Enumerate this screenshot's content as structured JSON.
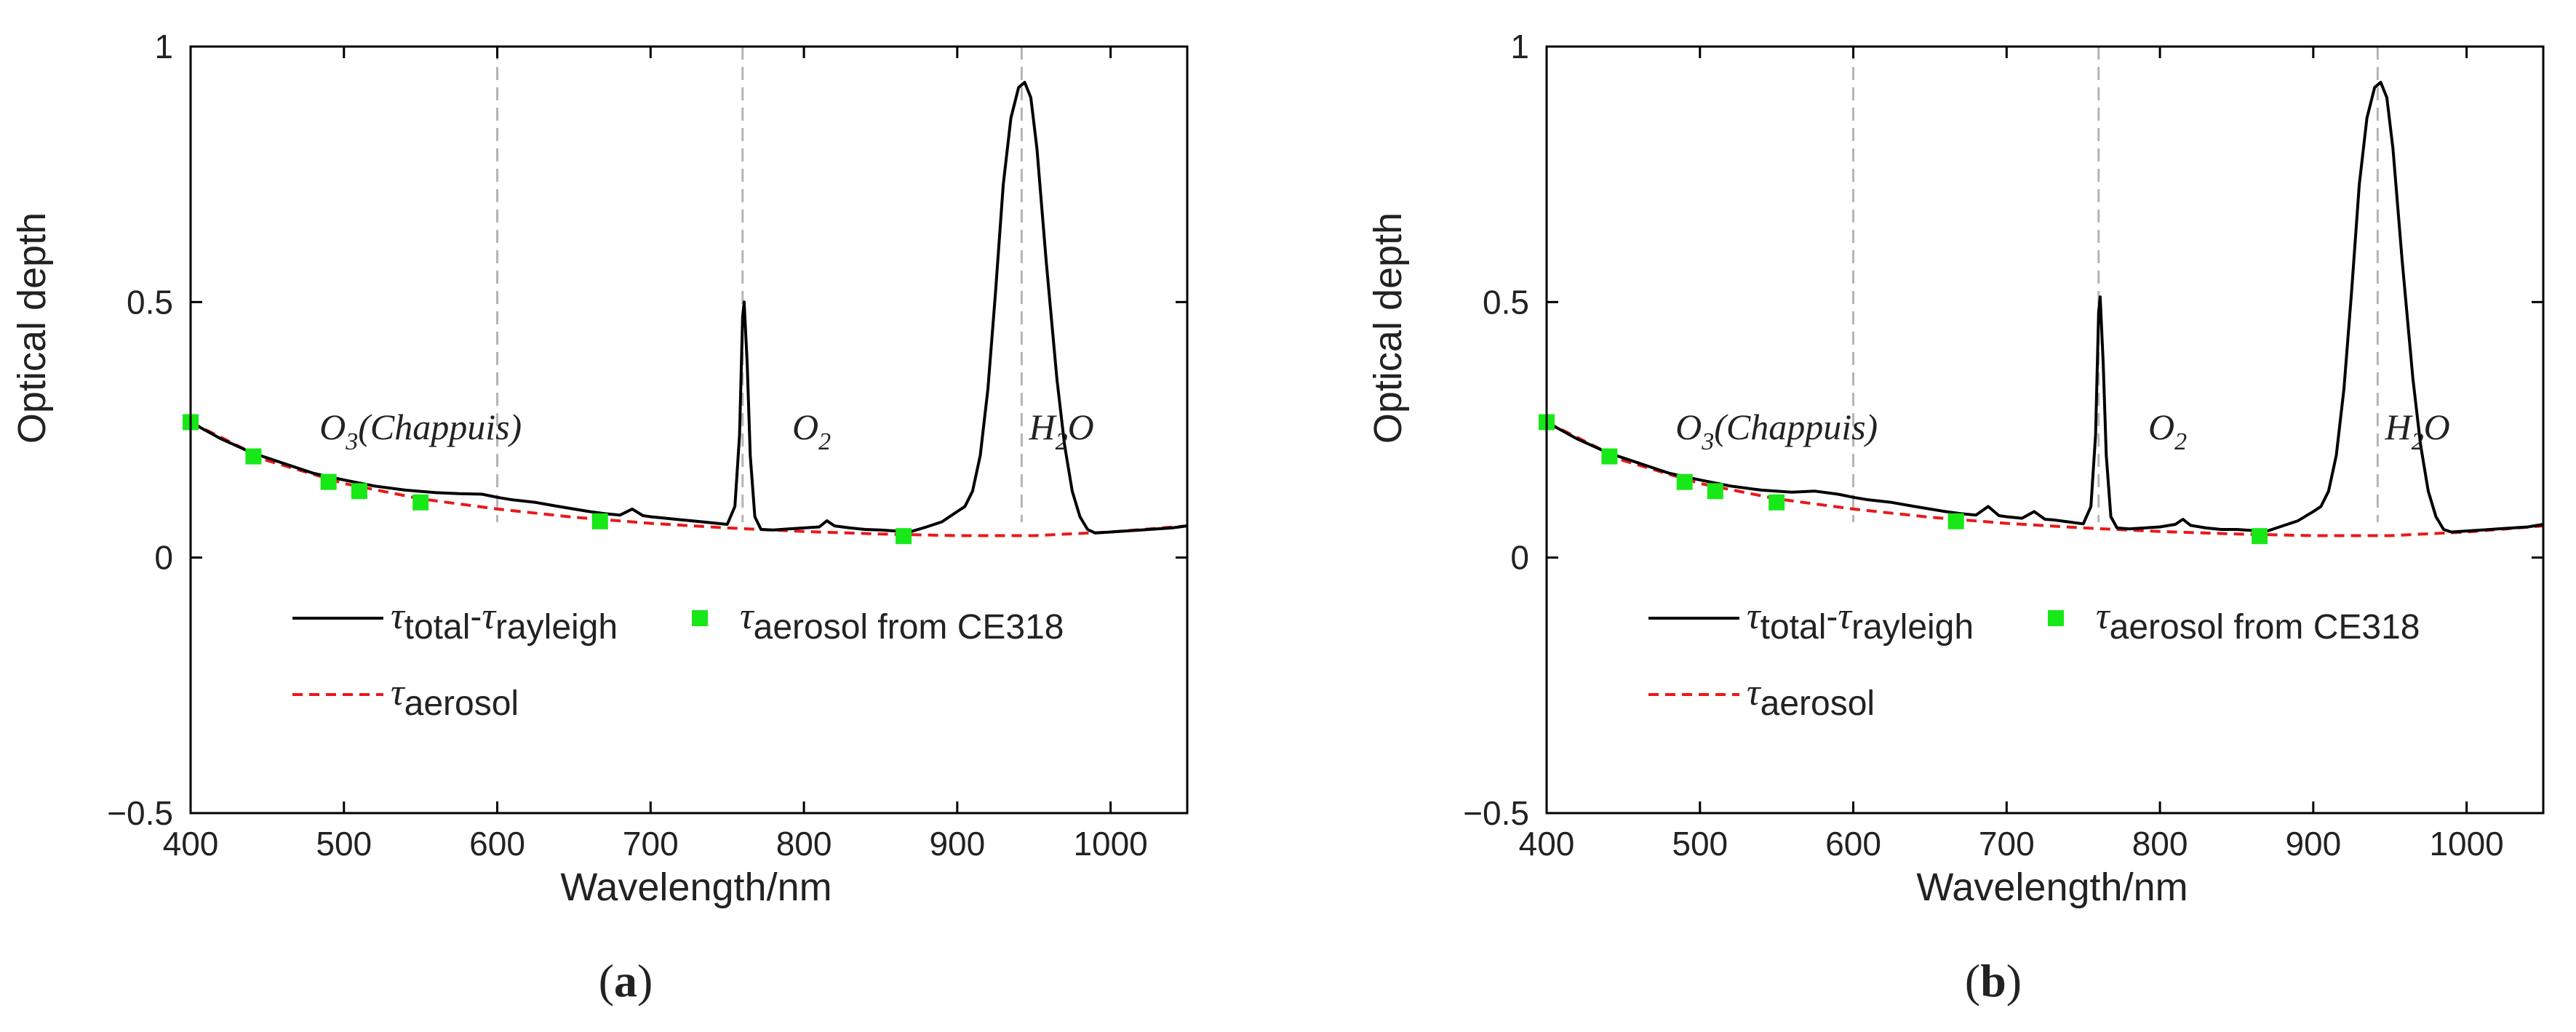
{
  "colors": {
    "total_line": "#000000",
    "aerosol_line": "#e8191b",
    "ce318_marker": "#18e818",
    "band_marker": "#b4b4b4"
  },
  "chart_data": [
    {
      "type": "line",
      "panel_label": "(a)",
      "xlabel": "Wavelength/nm",
      "ylabel": "Optical depth",
      "xlim": [
        400,
        1050
      ],
      "ylim": [
        -0.5,
        1
      ],
      "xticks": [
        400,
        500,
        600,
        700,
        800,
        900,
        1000
      ],
      "xtick_labels": [
        "400",
        "500",
        "600",
        "700",
        "800",
        "900",
        "1000"
      ],
      "yticks": [
        -0.5,
        0,
        0.5,
        1
      ],
      "ytick_labels": [
        "−0.5",
        "0",
        "0.5",
        "1"
      ],
      "grid": false,
      "legend_position": "lower-left",
      "band_markers": [
        600,
        760,
        942
      ],
      "annotations": [
        {
          "main": "O",
          "sub": "3",
          "rest": "(Chappuis)",
          "x": 550,
          "y": 0.26
        },
        {
          "main": "O",
          "sub": "2",
          "rest": "",
          "x": 805,
          "y": 0.26
        },
        {
          "main": "H",
          "sub": "2",
          "rest": "O",
          "x": 968,
          "y": 0.26
        }
      ],
      "legend": {
        "total": {
          "main": "τ",
          "sub1": "total",
          "dash": "-",
          "main2": "τ",
          "sub2": "rayleigh"
        },
        "aerosol": {
          "main": "τ",
          "sub": "aerosol"
        },
        "ce318": {
          "main": "τ",
          "sub": "aerosol from CE318"
        }
      },
      "series": [
        {
          "name": "τtotal-τrayleigh",
          "style": "solid",
          "x": [
            400,
            420,
            440,
            460,
            480,
            500,
            520,
            540,
            560,
            575,
            590,
            600,
            610,
            625,
            640,
            650,
            660,
            670,
            680,
            688,
            695,
            700,
            710,
            720,
            730,
            740,
            750,
            755,
            758,
            760,
            761,
            763,
            765,
            768,
            772,
            780,
            790,
            800,
            810,
            815,
            820,
            830,
            840,
            850,
            860,
            870,
            880,
            890,
            900,
            905,
            910,
            915,
            920,
            925,
            930,
            935,
            940,
            944,
            948,
            952,
            958,
            965,
            970,
            975,
            980,
            985,
            990,
            1000,
            1010,
            1020,
            1030,
            1040,
            1050
          ],
          "y": [
            0.265,
            0.232,
            0.205,
            0.185,
            0.165,
            0.152,
            0.14,
            0.132,
            0.127,
            0.125,
            0.124,
            0.118,
            0.113,
            0.108,
            0.1,
            0.095,
            0.09,
            0.086,
            0.083,
            0.095,
            0.082,
            0.08,
            0.077,
            0.074,
            0.071,
            0.068,
            0.065,
            0.1,
            0.24,
            0.47,
            0.5,
            0.38,
            0.2,
            0.08,
            0.055,
            0.054,
            0.056,
            0.058,
            0.06,
            0.072,
            0.062,
            0.058,
            0.055,
            0.054,
            0.052,
            0.051,
            0.06,
            0.07,
            0.09,
            0.1,
            0.13,
            0.2,
            0.33,
            0.52,
            0.73,
            0.86,
            0.92,
            0.93,
            0.9,
            0.8,
            0.58,
            0.35,
            0.22,
            0.13,
            0.08,
            0.055,
            0.048,
            0.05,
            0.052,
            0.054,
            0.056,
            0.058,
            0.062
          ]
        },
        {
          "name": "τaerosol",
          "style": "dashed",
          "x": [
            400,
            450,
            500,
            550,
            600,
            650,
            700,
            750,
            800,
            850,
            900,
            950,
            1000,
            1050
          ],
          "y": [
            0.265,
            0.19,
            0.145,
            0.115,
            0.095,
            0.079,
            0.067,
            0.058,
            0.051,
            0.046,
            0.043,
            0.043,
            0.05,
            0.062
          ]
        },
        {
          "name": "τaerosol from CE318",
          "style": "markers",
          "x": [
            400,
            441,
            490,
            510,
            550,
            667,
            865
          ],
          "y": [
            0.265,
            0.198,
            0.148,
            0.13,
            0.108,
            0.071,
            0.042
          ]
        }
      ]
    },
    {
      "type": "line",
      "panel_label": "(b)",
      "xlabel": "Wavelength/nm",
      "ylabel": "Optical depth",
      "xlim": [
        400,
        1050
      ],
      "ylim": [
        -0.5,
        1
      ],
      "xticks": [
        400,
        500,
        600,
        700,
        800,
        900,
        1000
      ],
      "xtick_labels": [
        "400",
        "500",
        "600",
        "700",
        "800",
        "900",
        "1000"
      ],
      "yticks": [
        -0.5,
        0,
        0.5,
        1
      ],
      "ytick_labels": [
        "−0.5",
        "0",
        "0.5",
        "1"
      ],
      "grid": false,
      "legend_position": "lower-left",
      "band_markers": [
        600,
        760,
        942
      ],
      "annotations": [
        {
          "main": "O",
          "sub": "3",
          "rest": "(Chappuis)",
          "x": 550,
          "y": 0.26
        },
        {
          "main": "O",
          "sub": "2",
          "rest": "",
          "x": 805,
          "y": 0.26
        },
        {
          "main": "H",
          "sub": "2",
          "rest": "O",
          "x": 968,
          "y": 0.26
        }
      ],
      "legend": {
        "total": {
          "main": "τ",
          "sub1": "total",
          "dash": "-",
          "main2": "τ",
          "sub2": "rayleigh"
        },
        "aerosol": {
          "main": "τ",
          "sub": "aerosol"
        },
        "ce318": {
          "main": "τ",
          "sub": "aerosol from CE318"
        }
      },
      "series": [
        {
          "name": "τtotal-τrayleigh",
          "style": "solid",
          "x": [
            400,
            420,
            440,
            460,
            480,
            500,
            520,
            540,
            560,
            575,
            590,
            600,
            610,
            625,
            640,
            650,
            660,
            670,
            680,
            688,
            695,
            700,
            710,
            718,
            725,
            730,
            740,
            750,
            755,
            758,
            760,
            761,
            763,
            765,
            768,
            772,
            780,
            790,
            800,
            810,
            815,
            820,
            830,
            840,
            850,
            860,
            870,
            880,
            890,
            900,
            905,
            910,
            915,
            920,
            925,
            930,
            935,
            940,
            944,
            948,
            952,
            958,
            965,
            970,
            975,
            980,
            985,
            990,
            1000,
            1010,
            1020,
            1030,
            1040,
            1050
          ],
          "y": [
            0.265,
            0.232,
            0.205,
            0.185,
            0.165,
            0.152,
            0.14,
            0.132,
            0.128,
            0.13,
            0.124,
            0.118,
            0.113,
            0.108,
            0.1,
            0.095,
            0.09,
            0.086,
            0.083,
            0.1,
            0.082,
            0.08,
            0.077,
            0.09,
            0.075,
            0.074,
            0.07,
            0.066,
            0.1,
            0.24,
            0.48,
            0.51,
            0.38,
            0.2,
            0.08,
            0.058,
            0.056,
            0.058,
            0.06,
            0.065,
            0.075,
            0.063,
            0.058,
            0.055,
            0.055,
            0.053,
            0.052,
            0.062,
            0.072,
            0.09,
            0.1,
            0.13,
            0.2,
            0.33,
            0.52,
            0.73,
            0.86,
            0.92,
            0.93,
            0.9,
            0.8,
            0.58,
            0.35,
            0.22,
            0.13,
            0.08,
            0.055,
            0.05,
            0.052,
            0.054,
            0.056,
            0.058,
            0.06,
            0.065
          ]
        },
        {
          "name": "τaerosol",
          "style": "dashed",
          "x": [
            400,
            450,
            500,
            550,
            600,
            650,
            700,
            750,
            800,
            850,
            900,
            950,
            1000,
            1050
          ],
          "y": [
            0.265,
            0.19,
            0.145,
            0.115,
            0.095,
            0.079,
            0.067,
            0.058,
            0.051,
            0.046,
            0.043,
            0.043,
            0.05,
            0.062
          ]
        },
        {
          "name": "τaerosol from CE318",
          "style": "markers",
          "x": [
            400,
            441,
            490,
            510,
            550,
            667,
            865
          ],
          "y": [
            0.265,
            0.198,
            0.148,
            0.13,
            0.108,
            0.071,
            0.042
          ]
        }
      ]
    }
  ]
}
